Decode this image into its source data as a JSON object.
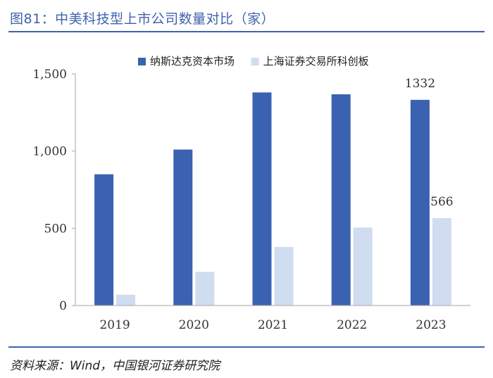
{
  "figure": {
    "title": "图81：中美科技型上市公司数量对比（家）",
    "source": "资料来源：Wind，中国银河证券研究院"
  },
  "colors": {
    "accent": "#3f62ad",
    "series_dark": "#3a62b0",
    "series_light": "#d0dcf0",
    "axis": "#a6a6a6"
  },
  "chart_data": {
    "type": "bar",
    "title": "",
    "xlabel": "",
    "ylabel": "",
    "ylim": [
      0,
      1500
    ],
    "yticks": [
      0,
      500,
      1000,
      1500
    ],
    "ytick_labels": [
      "0",
      "500",
      "1,000",
      "1,500"
    ],
    "grid": false,
    "legend_position": "top",
    "categories": [
      "2019",
      "2020",
      "2021",
      "2022",
      "2023"
    ],
    "series": [
      {
        "name": "纳斯达克资本市场",
        "values": [
          850,
          1010,
          1380,
          1368,
          1332
        ]
      },
      {
        "name": "上海证券交易所科创板",
        "values": [
          70,
          218,
          379,
          505,
          566
        ]
      }
    ],
    "annotations": [
      {
        "series": 0,
        "category": "2023",
        "text": "1332"
      },
      {
        "series": 1,
        "category": "2023",
        "text": "566"
      }
    ]
  }
}
